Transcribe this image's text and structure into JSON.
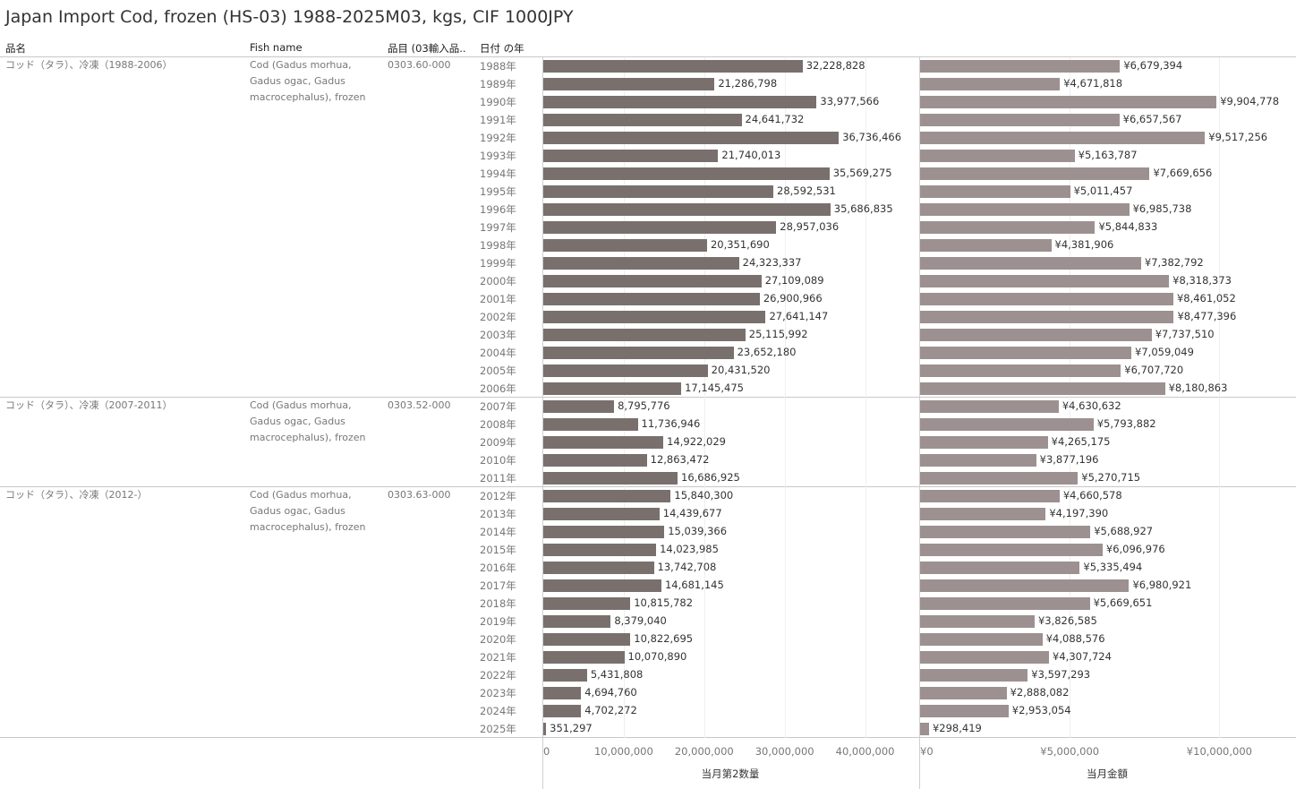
{
  "title": "Japan Import Cod, frozen (HS-03) 1988-2025M03, kgs, CIF 1000JPY",
  "columns": {
    "name_jp": "品名",
    "fish_name": "Fish name",
    "code": "品目 (03輸入品..",
    "year": "日付 の年"
  },
  "groups": [
    {
      "name_jp": "コッド（タラ）、冷凍（1988-2006）",
      "fish_name": [
        "Cod (Gadus morhua,",
        "Gadus ogac, Gadus",
        "macrocephalus), frozen"
      ],
      "code": "0303.60-000",
      "start": 0,
      "count": 19
    },
    {
      "name_jp": "コッド（タラ）、冷凍（2007-2011）",
      "fish_name": [
        "Cod (Gadus morhua,",
        "Gadus ogac, Gadus",
        "macrocephalus), frozen"
      ],
      "code": "0303.52-000",
      "start": 19,
      "count": 5
    },
    {
      "name_jp": "コッド（タラ）、冷凍（2012-）",
      "fish_name": [
        "Cod (Gadus morhua,",
        "Gadus ogac, Gadus",
        "macrocephalus), frozen"
      ],
      "code": "0303.63-000",
      "start": 24,
      "count": 14
    }
  ],
  "chart_data": {
    "type": "bar",
    "orientation": "horizontal",
    "categories": [
      "1988年",
      "1989年",
      "1990年",
      "1991年",
      "1992年",
      "1993年",
      "1994年",
      "1995年",
      "1996年",
      "1997年",
      "1998年",
      "1999年",
      "2000年",
      "2001年",
      "2002年",
      "2003年",
      "2004年",
      "2005年",
      "2006年",
      "2007年",
      "2008年",
      "2009年",
      "2010年",
      "2011年",
      "2012年",
      "2013年",
      "2014年",
      "2015年",
      "2016年",
      "2017年",
      "2018年",
      "2019年",
      "2020年",
      "2021年",
      "2022年",
      "2023年",
      "2024年",
      "2025年"
    ],
    "series": [
      {
        "name": "当月第2数量",
        "color": "#79706e",
        "values": [
          32228828,
          21286798,
          33977566,
          24641732,
          36736466,
          21740013,
          35569275,
          28592531,
          35686835,
          28957036,
          20351690,
          24323337,
          27109089,
          26900966,
          27641147,
          25115992,
          23652180,
          20431520,
          17145475,
          8795776,
          11736946,
          14922029,
          12863472,
          16686925,
          15840300,
          14439677,
          15039366,
          14023985,
          13742708,
          14681145,
          10815782,
          8379040,
          10822695,
          10070890,
          5431808,
          4694760,
          4702272,
          351297
        ],
        "labels": [
          "32,228,828",
          "21,286,798",
          "33,977,566",
          "24,641,732",
          "36,736,466",
          "21,740,013",
          "35,569,275",
          "28,592,531",
          "35,686,835",
          "28,957,036",
          "20,351,690",
          "24,323,337",
          "27,109,089",
          "26,900,966",
          "27,641,147",
          "25,115,992",
          "23,652,180",
          "20,431,520",
          "17,145,475",
          "8,795,776",
          "11,736,946",
          "14,922,029",
          "12,863,472",
          "16,686,925",
          "15,840,300",
          "14,439,677",
          "15,039,366",
          "14,023,985",
          "13,742,708",
          "14,681,145",
          "10,815,782",
          "8,379,040",
          "10,822,695",
          "10,070,890",
          "5,431,808",
          "4,694,760",
          "4,702,272",
          "351,297"
        ],
        "axis_title": "当月第2数量",
        "xlim": [
          0,
          46500000
        ],
        "ticks": [
          0,
          10000000,
          20000000,
          30000000,
          40000000
        ],
        "tick_labels": [
          "0",
          "10,000,000",
          "20,000,000",
          "30,000,000",
          "40,000,000"
        ]
      },
      {
        "name": "当月金額",
        "color": "#9c9190",
        "values": [
          6679394,
          4671818,
          9904778,
          6657567,
          9517256,
          5163787,
          7669656,
          5011457,
          6985738,
          5844833,
          4381906,
          7382792,
          8318373,
          8461052,
          8477396,
          7737510,
          7059049,
          6707720,
          8180863,
          4630632,
          5793882,
          4265175,
          3877196,
          5270715,
          4660578,
          4197390,
          5688927,
          6096976,
          5335494,
          6980921,
          5669651,
          3826585,
          4088576,
          4307724,
          3597293,
          2888082,
          2953054,
          298419
        ],
        "labels": [
          "¥6,679,394",
          "¥4,671,818",
          "¥9,904,778",
          "¥6,657,567",
          "¥9,517,256",
          "¥5,163,787",
          "¥7,669,656",
          "¥5,011,457",
          "¥6,985,738",
          "¥5,844,833",
          "¥4,381,906",
          "¥7,382,792",
          "¥8,318,373",
          "¥8,461,052",
          "¥8,477,396",
          "¥7,737,510",
          "¥7,059,049",
          "¥6,707,720",
          "¥8,180,863",
          "¥4,630,632",
          "¥5,793,882",
          "¥4,265,175",
          "¥3,877,196",
          "¥5,270,715",
          "¥4,660,578",
          "¥4,197,390",
          "¥5,688,927",
          "¥6,096,976",
          "¥5,335,494",
          "¥6,980,921",
          "¥5,669,651",
          "¥3,826,585",
          "¥4,088,576",
          "¥4,307,724",
          "¥3,597,293",
          "¥2,888,082",
          "¥2,953,054",
          "¥298,419"
        ],
        "axis_title": "当月金額",
        "xlim": [
          0,
          12500000
        ],
        "ticks": [
          0,
          5000000,
          10000000
        ],
        "tick_labels": [
          "¥0",
          "¥5,000,000",
          "¥10,000,000"
        ]
      }
    ],
    "grid": true,
    "legend": "none"
  }
}
